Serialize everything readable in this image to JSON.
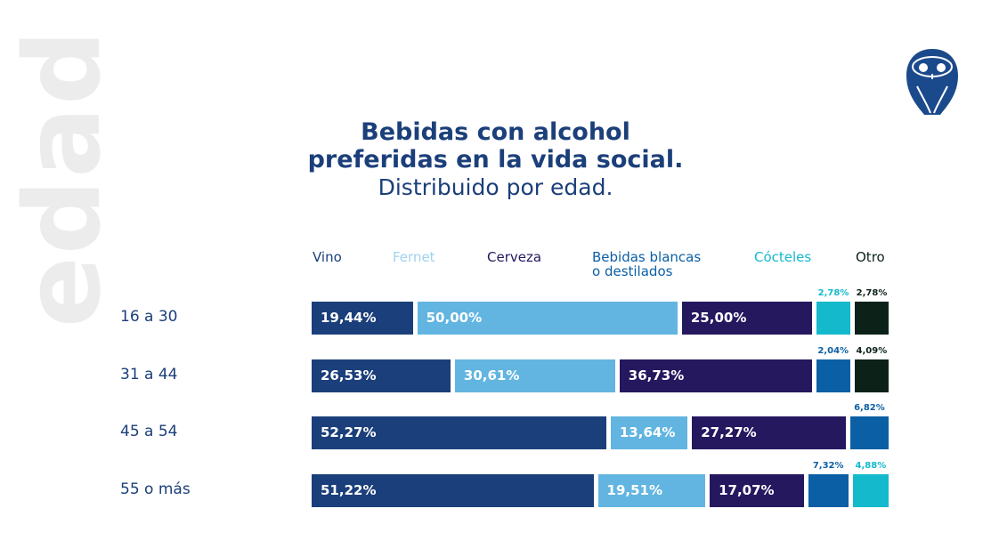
{
  "side_title": "edad",
  "logo": "owl-logo",
  "chart_data": {
    "type": "bar",
    "orientation": "horizontal-stacked",
    "title": "Bebidas con alcohol preferidas en la vida social.",
    "title_lines": [
      "Bebidas con alcohol",
      "preferidas en la vida social."
    ],
    "subtitle": "Distribuido por edad.",
    "categories": [
      "16 a 30",
      "31 a 44",
      "45 a 54",
      "55 o más"
    ],
    "legend_position": "top",
    "series": [
      {
        "name": "Vino",
        "color": "#1b3f7a",
        "values": [
          19.44,
          26.53,
          52.27,
          51.22
        ],
        "labels": [
          "19,44%",
          "26,53%",
          "52,27%",
          "51,22%"
        ]
      },
      {
        "name": "Fernet",
        "color": "#62b5e0",
        "values": [
          50.0,
          30.61,
          13.64,
          19.51
        ],
        "labels": [
          "50,00%",
          "30,61%",
          "13,64%",
          "19,51%"
        ]
      },
      {
        "name": "Cerveza",
        "color": "#25185f",
        "values": [
          25.0,
          36.73,
          27.27,
          17.07
        ],
        "labels": [
          "25,00%",
          "36,73%",
          "27,27%",
          "17,07%"
        ]
      },
      {
        "name": "Bebidas blancas\no destilados",
        "color": "#0b5fa5",
        "values": [
          0,
          2.04,
          6.82,
          7.32
        ],
        "labels": [
          "",
          "2,04%",
          "6,82%",
          "7,32%"
        ]
      },
      {
        "name": "Cócteles",
        "color": "#14b9cc",
        "values": [
          2.78,
          0,
          0,
          4.88
        ],
        "labels": [
          "2,78%",
          "",
          "",
          "4,88%"
        ]
      },
      {
        "name": "Otro",
        "color": "#0c2219",
        "values": [
          2.78,
          4.09,
          0,
          0
        ],
        "labels": [
          "2,78%",
          "4,09%",
          "",
          ""
        ]
      }
    ]
  }
}
